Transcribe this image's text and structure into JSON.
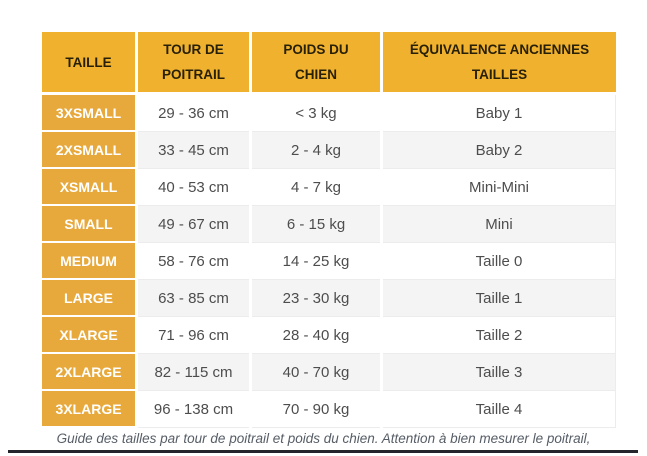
{
  "table": {
    "header": {
      "size": "TAILLE",
      "chest": "TOUR DE POITRAIL",
      "weight": "POIDS DU CHIEN",
      "equivalence": "ÉQUIVALENCE ANCIENNES TAILLES"
    },
    "rows": [
      {
        "size": "3XSMALL",
        "chest": "29 - 36 cm",
        "weight": "< 3 kg",
        "old_size": "Baby 1"
      },
      {
        "size": "2XSMALL",
        "chest": "33 - 45 cm",
        "weight": "2 - 4 kg",
        "old_size": "Baby 2"
      },
      {
        "size": "XSMALL",
        "chest": "40 - 53 cm",
        "weight": "4 - 7 kg",
        "old_size": "Mini-Mini"
      },
      {
        "size": "SMALL",
        "chest": "49 - 67 cm",
        "weight": "6 - 15 kg",
        "old_size": "Mini"
      },
      {
        "size": "MEDIUM",
        "chest": "58 - 76 cm",
        "weight": "14 - 25 kg",
        "old_size": "Taille 0"
      },
      {
        "size": "LARGE",
        "chest": "63 - 85 cm",
        "weight": "23 - 30 kg",
        "old_size": "Taille 1"
      },
      {
        "size": "XLARGE",
        "chest": "71 - 96 cm",
        "weight": "28 - 40 kg",
        "old_size": "Taille 2"
      },
      {
        "size": "2XLARGE",
        "chest": "82 - 115 cm",
        "weight": "40 - 70 kg",
        "old_size": "Taille 3"
      },
      {
        "size": "3XLARGE",
        "chest": "96 - 138 cm",
        "weight": "70 - 90 kg",
        "old_size": "Taille 4"
      }
    ]
  },
  "caption": "Guide des tailles par tour de poitrail et poids du chien. Attention à bien mesurer le poitrail,",
  "colors": {
    "header_bg": "#F0B22E",
    "size_column_bg": "#E8A93C",
    "header_text": "#271F06",
    "size_column_text": "#FFFFFF",
    "data_text": "#4D4D4D",
    "alt_row_bg": "#F4F4F4",
    "hairline": "#ECECEC",
    "caption_text": "#565D66",
    "bottom_bar": "#25252D"
  }
}
